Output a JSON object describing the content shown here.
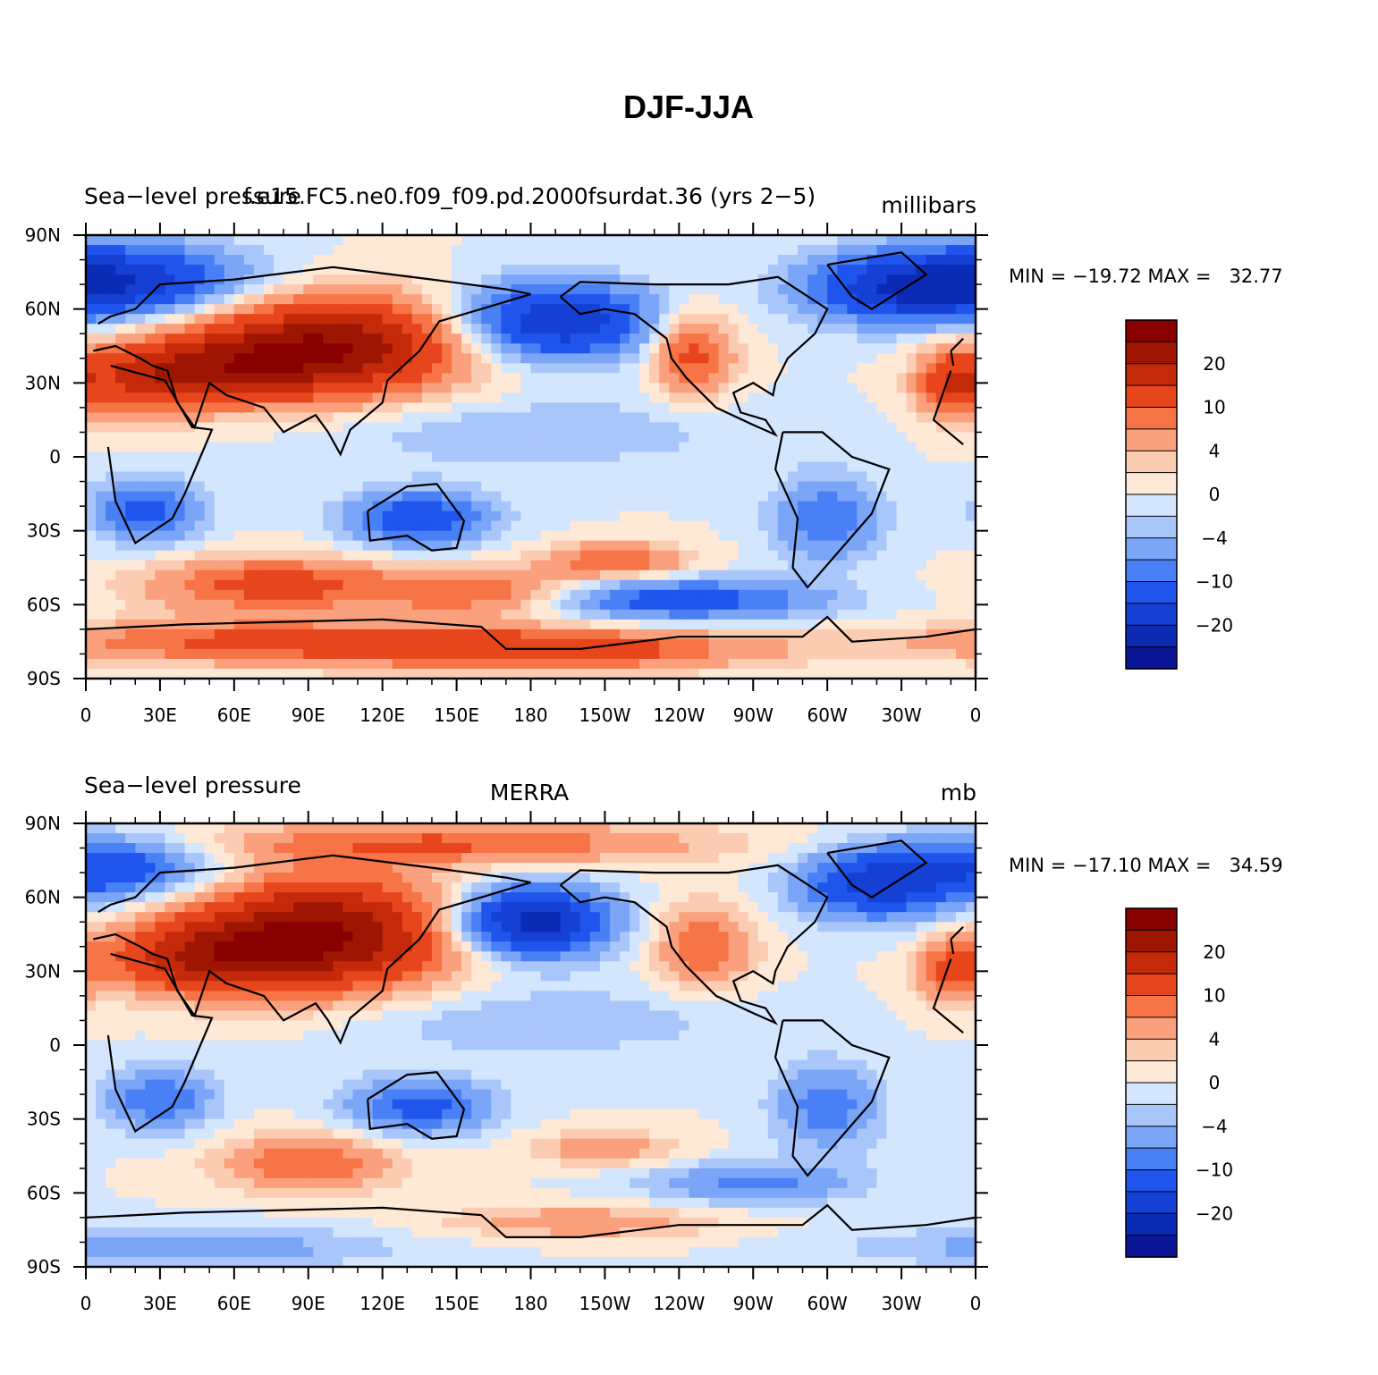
{
  "figure_title": "DJF-JJA",
  "colors": {
    "levels": [
      "#0a1696",
      "#0b2bb4",
      "#1540d4",
      "#1f55ec",
      "#4a80f5",
      "#7ba5f7",
      "#a9c6fb",
      "#d4e6fd",
      "#fee8d6",
      "#fcccb2",
      "#faa07c",
      "#f67446",
      "#e7461c",
      "#c42a0a",
      "#9e1602",
      "#880000"
    ],
    "coastline": "#000000"
  },
  "colorbar_labels": [
    "20",
    "10",
    "4",
    "0",
    "−4",
    "−10",
    "−20"
  ],
  "x_ticks": [
    "0",
    "30E",
    "60E",
    "90E",
    "120E",
    "150E",
    "180",
    "150W",
    "120W",
    "90W",
    "60W",
    "30W",
    "0"
  ],
  "y_ticks": [
    "90N",
    "60N",
    "30N",
    "0",
    "30S",
    "60S",
    "90S"
  ],
  "chart_data": [
    {
      "type": "heatmap",
      "title_left": "Sea−level pressure",
      "title_center": "f.e15.FC5.ne0.f09_f09.pd.2000fsurdat.36 (yrs 2−5)",
      "title_right": "millibars",
      "stats": "MIN = −19.72 MAX =   32.77",
      "min": -19.72,
      "max": 32.77,
      "xlim": [
        0,
        360
      ],
      "ylim": [
        -90,
        90
      ],
      "blobs": [
        {
          "lon": 100,
          "lat": 45,
          "slon": 38,
          "slat": 14,
          "amp": 24
        },
        {
          "lon": 50,
          "lat": 35,
          "slon": 30,
          "slat": 10,
          "amp": 14
        },
        {
          "lon": 20,
          "lat": 30,
          "slon": 20,
          "slat": 10,
          "amp": 8
        },
        {
          "lon": 245,
          "lat": 42,
          "slon": 12,
          "slat": 12,
          "amp": 12
        },
        {
          "lon": 350,
          "lat": 30,
          "slon": 10,
          "slat": 10,
          "amp": 12
        },
        {
          "lon": 190,
          "lat": 55,
          "slon": 28,
          "slat": 11,
          "amp": -20
        },
        {
          "lon": 15,
          "lat": 72,
          "slon": 35,
          "slat": 10,
          "amp": -18
        },
        {
          "lon": 330,
          "lat": 68,
          "slon": 28,
          "slat": 10,
          "amp": -16
        },
        {
          "lon": 25,
          "lat": -22,
          "slon": 15,
          "slat": 9,
          "amp": -12
        },
        {
          "lon": 135,
          "lat": -25,
          "slon": 20,
          "slat": 8,
          "amp": -14
        },
        {
          "lon": 300,
          "lat": -25,
          "slon": 15,
          "slat": 12,
          "amp": -10
        },
        {
          "lon": 75,
          "lat": -52,
          "slon": 35,
          "slat": 8,
          "amp": 12
        },
        {
          "lon": 160,
          "lat": -55,
          "slon": 30,
          "slat": 7,
          "amp": 10
        },
        {
          "lon": 215,
          "lat": -42,
          "slon": 20,
          "slat": 5,
          "amp": 10
        },
        {
          "lon": 240,
          "lat": -58,
          "slon": 40,
          "slat": 6,
          "amp": -13
        },
        {
          "lon": 185,
          "lat": -78,
          "slon": 60,
          "slat": 6,
          "amp": 14
        },
        {
          "lon": 60,
          "lat": -75,
          "slon": 60,
          "slat": 6,
          "amp": 10
        },
        {
          "lon": 180,
          "lat": 10,
          "slon": 60,
          "slat": 10,
          "amp": -4
        }
      ]
    },
    {
      "type": "heatmap",
      "title_left": "Sea−level pressure",
      "title_center": "MERRA",
      "title_right": "mb",
      "stats": "MIN = −17.10 MAX =   34.59",
      "min": -17.1,
      "max": 34.59,
      "xlim": [
        0,
        360
      ],
      "ylim": [
        -90,
        90
      ],
      "blobs": [
        {
          "lon": 95,
          "lat": 45,
          "slon": 38,
          "slat": 16,
          "amp": 26
        },
        {
          "lon": 45,
          "lat": 35,
          "slon": 28,
          "slat": 10,
          "amp": 14
        },
        {
          "lon": 150,
          "lat": 82,
          "slon": 70,
          "slat": 6,
          "amp": 10
        },
        {
          "lon": 250,
          "lat": 40,
          "slon": 14,
          "slat": 12,
          "amp": 10
        },
        {
          "lon": 350,
          "lat": 30,
          "slon": 10,
          "slat": 9,
          "amp": 10
        },
        {
          "lon": 180,
          "lat": 50,
          "slon": 22,
          "slat": 10,
          "amp": -24
        },
        {
          "lon": 10,
          "lat": 72,
          "slon": 30,
          "slat": 9,
          "amp": -14
        },
        {
          "lon": 320,
          "lat": 65,
          "slon": 22,
          "slat": 10,
          "amp": -16
        },
        {
          "lon": 30,
          "lat": -22,
          "slon": 15,
          "slat": 9,
          "amp": -10
        },
        {
          "lon": 135,
          "lat": -25,
          "slon": 20,
          "slat": 8,
          "amp": -12
        },
        {
          "lon": 300,
          "lat": -25,
          "slon": 15,
          "slat": 12,
          "amp": -9
        },
        {
          "lon": 90,
          "lat": -48,
          "slon": 25,
          "slat": 8,
          "amp": 10
        },
        {
          "lon": 210,
          "lat": -42,
          "slon": 22,
          "slat": 5,
          "amp": 6
        },
        {
          "lon": 270,
          "lat": -56,
          "slon": 30,
          "slat": 6,
          "amp": -8
        },
        {
          "lon": 200,
          "lat": -72,
          "slon": 40,
          "slat": 5,
          "amp": 6
        },
        {
          "lon": 40,
          "lat": -82,
          "slon": 60,
          "slat": 6,
          "amp": -6
        },
        {
          "lon": 180,
          "lat": 10,
          "slon": 60,
          "slat": 10,
          "amp": -4
        }
      ]
    }
  ]
}
